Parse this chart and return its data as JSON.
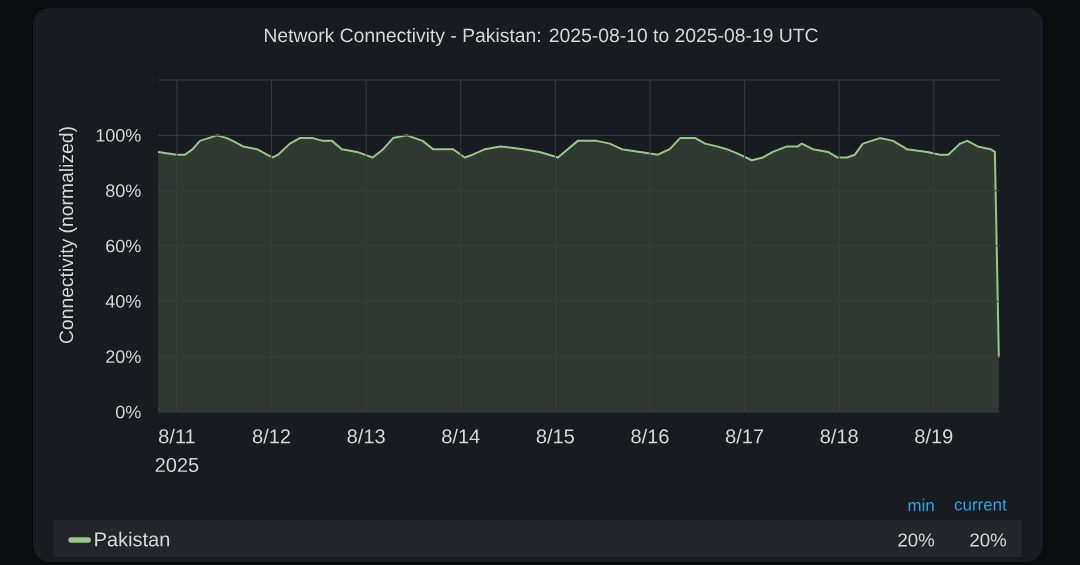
{
  "chart_data": {
    "type": "area",
    "title": "Network Connectivity - Pakistan: 2025-08-10 to 2025-08-19 UTC",
    "ylabel": "Connectivity (normalized)",
    "x": [
      "2025-08-10T19:12",
      "2025-08-11T00:00",
      "2025-08-11T02:00",
      "2025-08-11T04:00",
      "2025-08-11T05:50",
      "2025-08-11T10:10",
      "2025-08-11T12:40",
      "2025-08-11T14:10",
      "2025-08-11T16:45",
      "2025-08-11T20:20",
      "2025-08-11T22:50",
      "2025-08-12T00:20",
      "2025-08-12T01:40",
      "2025-08-12T04:40",
      "2025-08-12T07:10",
      "2025-08-12T10:30",
      "2025-08-12T13:00",
      "2025-08-12T15:20",
      "2025-08-12T17:50",
      "2025-08-12T21:40",
      "2025-08-13T01:40",
      "2025-08-13T04:20",
      "2025-08-13T06:50",
      "2025-08-13T10:20",
      "2025-08-13T14:20",
      "2025-08-13T17:00",
      "2025-08-13T18:40",
      "2025-08-13T22:00",
      "2025-08-14T01:00",
      "2025-08-14T03:00",
      "2025-08-14T06:10",
      "2025-08-14T10:00",
      "2025-08-14T15:50",
      "2025-08-14T20:00",
      "2025-08-15T00:40",
      "2025-08-15T03:10",
      "2025-08-15T05:40",
      "2025-08-15T10:30",
      "2025-08-15T13:50",
      "2025-08-15T16:50",
      "2025-08-15T21:30",
      "2025-08-16T02:00",
      "2025-08-16T05:00",
      "2025-08-16T07:40",
      "2025-08-16T11:30",
      "2025-08-16T14:00",
      "2025-08-16T17:00",
      "2025-08-16T19:30",
      "2025-08-16T22:50",
      "2025-08-17T01:50",
      "2025-08-17T04:40",
      "2025-08-17T07:10",
      "2025-08-17T10:45",
      "2025-08-17T13:30",
      "2025-08-17T14:30",
      "2025-08-17T17:20",
      "2025-08-17T21:10",
      "2025-08-17T23:30",
      "2025-08-18T02:00",
      "2025-08-18T04:00",
      "2025-08-18T06:00",
      "2025-08-18T10:20",
      "2025-08-18T13:40",
      "2025-08-18T17:10",
      "2025-08-18T22:20",
      "2025-08-19T01:30",
      "2025-08-19T03:40",
      "2025-08-19T06:40",
      "2025-08-19T08:30",
      "2025-08-19T11:10",
      "2025-08-19T14:20",
      "2025-08-19T15:30",
      "2025-08-19T16:30"
    ],
    "series": [
      {
        "name": "Pakistan",
        "color": "#9ac48a",
        "values": [
          94,
          93,
          93,
          95,
          98,
          100,
          99,
          98,
          96,
          95,
          93,
          92,
          93,
          97,
          99,
          99,
          98,
          98,
          95,
          94,
          92,
          95,
          99,
          100,
          98,
          95,
          95,
          95,
          92,
          93,
          95,
          96,
          95,
          94,
          92,
          95,
          98,
          98,
          97,
          95,
          94,
          93,
          95,
          99,
          99,
          97,
          96,
          95,
          93,
          91,
          92,
          94,
          96,
          96,
          97,
          95,
          94,
          92,
          92,
          93,
          97,
          99,
          98,
          95,
          94,
          93,
          93,
          97,
          98,
          96,
          95,
          94,
          20
        ]
      }
    ],
    "xlim": [
      "2025-08-10T19:12",
      "2025-08-19T16:48"
    ],
    "xticks": [
      {
        "value": "2025-08-11",
        "label": "8/11\n2025"
      },
      {
        "value": "2025-08-12",
        "label": "8/12"
      },
      {
        "value": "2025-08-13",
        "label": "8/13"
      },
      {
        "value": "2025-08-14",
        "label": "8/14"
      },
      {
        "value": "2025-08-15",
        "label": "8/15"
      },
      {
        "value": "2025-08-16",
        "label": "8/16"
      },
      {
        "value": "2025-08-17",
        "label": "8/17"
      },
      {
        "value": "2025-08-18",
        "label": "8/18"
      },
      {
        "value": "2025-08-19",
        "label": "8/19"
      }
    ],
    "ylim": [
      0,
      120
    ],
    "yticks": [
      {
        "value": 0,
        "label": "0%"
      },
      {
        "value": 20,
        "label": "20%"
      },
      {
        "value": 40,
        "label": "40%"
      },
      {
        "value": 60,
        "label": "60%"
      },
      {
        "value": 80,
        "label": "80%"
      },
      {
        "value": 100,
        "label": "100%"
      },
      {
        "value": 120,
        "label": null
      }
    ],
    "grid": true,
    "legend": "bottom",
    "annotations": [
      "min",
      "current",
      "20%",
      "20%"
    ]
  }
}
